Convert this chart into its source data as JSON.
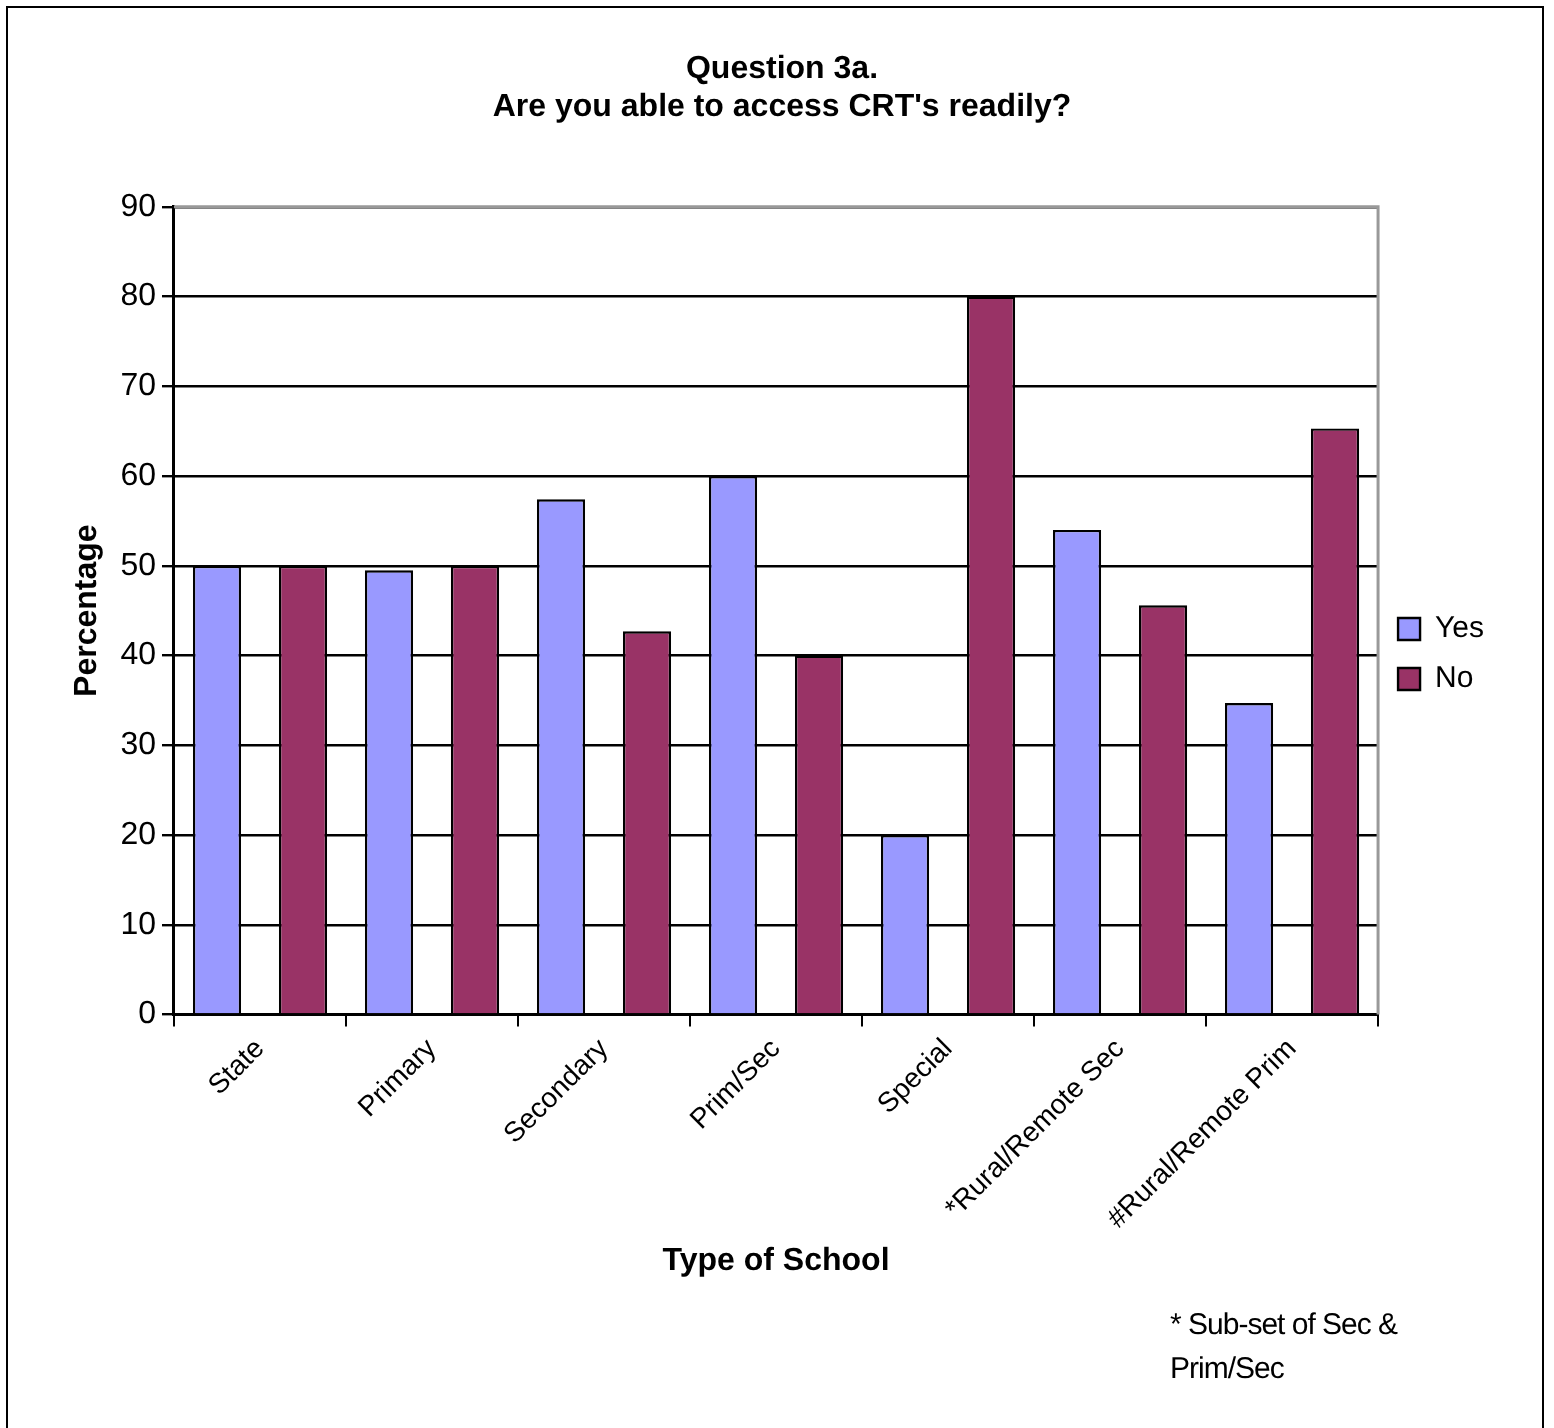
{
  "chart_data": {
    "type": "bar",
    "title": [
      "Question 3a.",
      "Are you able to access CRT's readily?"
    ],
    "xlabel": "Type of School",
    "ylabel": "Percentage",
    "categories": [
      "State",
      "Primary",
      "Secondary",
      "Prim/Sec",
      "Special",
      "*Rural/Remote Sec",
      "#Rural/Remote Prim"
    ],
    "series": [
      {
        "name": "Yes",
        "color": "#9999ff",
        "values": [
          50,
          49.5,
          57.4,
          60,
          20,
          54,
          34.7
        ]
      },
      {
        "name": "No",
        "color": "#993366",
        "values": [
          50,
          50,
          42.7,
          40,
          80,
          45.6,
          65.3
        ]
      }
    ],
    "ylim": [
      0,
      90
    ],
    "yticks": [
      0,
      10,
      20,
      30,
      40,
      50,
      60,
      70,
      80,
      90
    ],
    "grid": "y",
    "legend": "right",
    "annotations": [
      "* Sub-set of Sec & Prim/Sec"
    ]
  }
}
